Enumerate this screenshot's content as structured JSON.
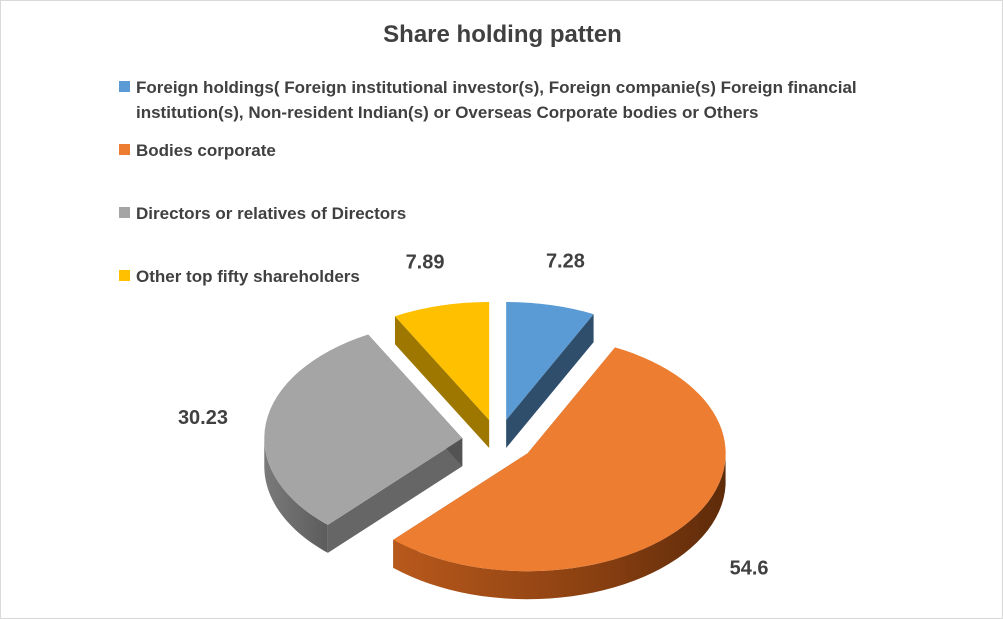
{
  "chart_data": {
    "type": "pie",
    "title": "Share holding patten",
    "legend_position": "top",
    "series": [
      {
        "name": "Foreign holdings( Foreign institutional  investor(s), Foreign companie(s) Foreign financial institution(s), Non-resident Indian(s) or Overseas Corporate bodies or Others",
        "value": 7.28,
        "label": "7.28",
        "color": "#5b9bd5"
      },
      {
        "name": "Bodies corporate",
        "value": 54.6,
        "label": "54.6",
        "color": "#ed7d31"
      },
      {
        "name": "Directors or relatives of Directors",
        "value": 30.23,
        "label": "30.23",
        "color": "#a5a5a5"
      },
      {
        "name": "Other top fifty shareholders",
        "value": 7.89,
        "label": "7.89",
        "color": "#ffc000"
      }
    ]
  }
}
